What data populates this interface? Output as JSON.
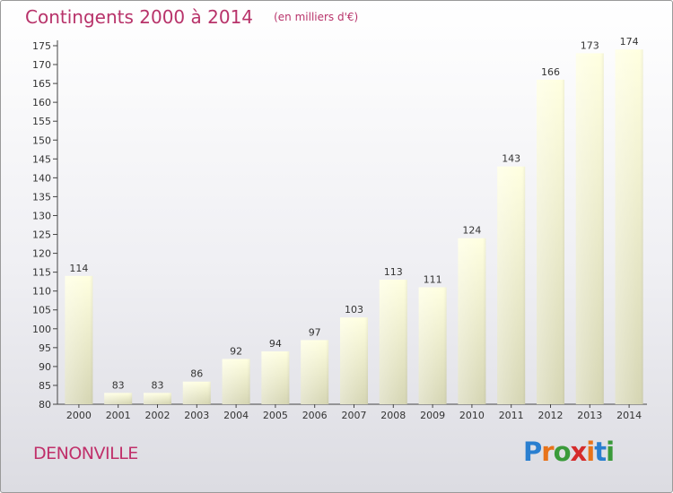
{
  "header": {
    "title": "Contingents 2000 à 2014",
    "subtitle": "(en milliers d'€)"
  },
  "footer": {
    "place_name": "DENONVILLE",
    "logo_text": "Proxiti",
    "logo_colors": [
      "#2a7fd0",
      "#e8731a",
      "#3a9a3a",
      "#d52b2b",
      "#e8731a",
      "#2a7fd0",
      "#3a9a3a"
    ]
  },
  "chart_data": {
    "type": "bar",
    "categories": [
      "2000",
      "2001",
      "2002",
      "2003",
      "2004",
      "2005",
      "2006",
      "2007",
      "2008",
      "2009",
      "2010",
      "2011",
      "2012",
      "2013",
      "2014"
    ],
    "values": [
      114,
      83,
      83,
      86,
      92,
      94,
      97,
      103,
      113,
      111,
      124,
      143,
      166,
      173,
      174
    ],
    "data_labels": [
      "114",
      "83",
      "83",
      "86",
      "92",
      "94",
      "97",
      "103",
      "113",
      "111",
      "124",
      "143",
      "166",
      "173",
      "174"
    ],
    "title": "Contingents 2000 à 2014",
    "subtitle": "(en milliers d'€)",
    "xlabel": "",
    "ylabel": "",
    "ylim": [
      80,
      175
    ],
    "yticks": [
      80,
      85,
      90,
      95,
      100,
      105,
      110,
      115,
      120,
      125,
      130,
      135,
      140,
      145,
      150,
      155,
      160,
      165,
      170,
      175
    ],
    "grid": false,
    "legend": "none",
    "bar_color_top": "#ffffe0",
    "bar_color_bottom": "#d6d6b4",
    "axis_color": "#444444"
  }
}
